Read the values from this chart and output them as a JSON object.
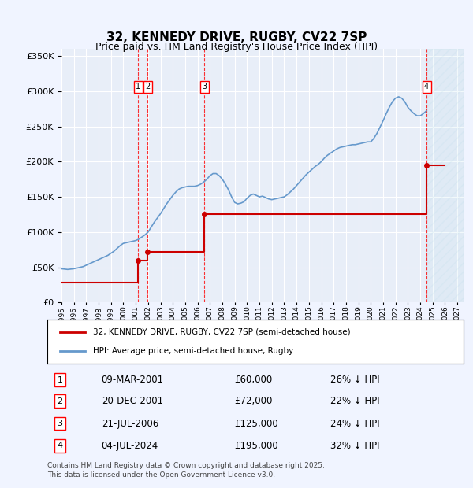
{
  "title": "32, KENNEDY DRIVE, RUGBY, CV22 7SP",
  "subtitle": "Price paid vs. HM Land Registry's House Price Index (HPI)",
  "ylabel_ticks": [
    "£0",
    "£50K",
    "£100K",
    "£150K",
    "£200K",
    "£250K",
    "£300K",
    "£350K"
  ],
  "ytick_values": [
    0,
    50000,
    100000,
    150000,
    200000,
    250000,
    300000,
    350000
  ],
  "ylim": [
    0,
    360000
  ],
  "xlim_start": 1995.0,
  "xlim_end": 2027.5,
  "background_color": "#f0f4ff",
  "plot_bg_color": "#e8eef8",
  "grid_color": "#ffffff",
  "red_line_color": "#cc0000",
  "blue_line_color": "#6699cc",
  "transactions": [
    {
      "id": 1,
      "date": "09-MAR-2001",
      "year": 2001.19,
      "price": 60000,
      "pct": "26%",
      "label": "1"
    },
    {
      "id": 2,
      "date": "20-DEC-2001",
      "year": 2001.97,
      "price": 72000,
      "pct": "22%",
      "label": "2"
    },
    {
      "id": 3,
      "date": "21-JUL-2006",
      "year": 2006.55,
      "price": 125000,
      "pct": "24%",
      "label": "3"
    },
    {
      "id": 4,
      "date": "04-JUL-2024",
      "year": 2024.51,
      "price": 195000,
      "pct": "32%",
      "label": "4"
    }
  ],
  "legend_line1": "32, KENNEDY DRIVE, RUGBY, CV22 7SP (semi-detached house)",
  "legend_line2": "HPI: Average price, semi-detached house, Rugby",
  "footer1": "Contains HM Land Registry data © Crown copyright and database right 2025.",
  "footer2": "This data is licensed under the Open Government Licence v3.0.",
  "hpi_data_x": [
    1995.0,
    1995.25,
    1995.5,
    1995.75,
    1996.0,
    1996.25,
    1996.5,
    1996.75,
    1997.0,
    1997.25,
    1997.5,
    1997.75,
    1998.0,
    1998.25,
    1998.5,
    1998.75,
    1999.0,
    1999.25,
    1999.5,
    1999.75,
    2000.0,
    2000.25,
    2000.5,
    2000.75,
    2001.0,
    2001.25,
    2001.5,
    2001.75,
    2002.0,
    2002.25,
    2002.5,
    2002.75,
    2003.0,
    2003.25,
    2003.5,
    2003.75,
    2004.0,
    2004.25,
    2004.5,
    2004.75,
    2005.0,
    2005.25,
    2005.5,
    2005.75,
    2006.0,
    2006.25,
    2006.5,
    2006.75,
    2007.0,
    2007.25,
    2007.5,
    2007.75,
    2008.0,
    2008.25,
    2008.5,
    2008.75,
    2009.0,
    2009.25,
    2009.5,
    2009.75,
    2010.0,
    2010.25,
    2010.5,
    2010.75,
    2011.0,
    2011.25,
    2011.5,
    2011.75,
    2012.0,
    2012.25,
    2012.5,
    2012.75,
    2013.0,
    2013.25,
    2013.5,
    2013.75,
    2014.0,
    2014.25,
    2014.5,
    2014.75,
    2015.0,
    2015.25,
    2015.5,
    2015.75,
    2016.0,
    2016.25,
    2016.5,
    2016.75,
    2017.0,
    2017.25,
    2017.5,
    2017.75,
    2018.0,
    2018.25,
    2018.5,
    2018.75,
    2019.0,
    2019.25,
    2019.5,
    2019.75,
    2020.0,
    2020.25,
    2020.5,
    2020.75,
    2021.0,
    2021.25,
    2021.5,
    2021.75,
    2022.0,
    2022.25,
    2022.5,
    2022.75,
    2023.0,
    2023.25,
    2023.5,
    2023.75,
    2024.0,
    2024.25,
    2024.5
  ],
  "hpi_data_y": [
    48000,
    47500,
    47000,
    47500,
    48000,
    49000,
    50000,
    51000,
    53000,
    55000,
    57000,
    59000,
    61000,
    63000,
    65000,
    67000,
    70000,
    73000,
    77000,
    81000,
    84000,
    85000,
    86000,
    87000,
    88000,
    90000,
    93000,
    96000,
    100000,
    107000,
    114000,
    120000,
    126000,
    133000,
    140000,
    146000,
    152000,
    157000,
    161000,
    163000,
    164000,
    165000,
    165000,
    165000,
    166000,
    168000,
    171000,
    175000,
    180000,
    183000,
    183000,
    180000,
    175000,
    168000,
    160000,
    150000,
    142000,
    140000,
    141000,
    143000,
    148000,
    152000,
    154000,
    152000,
    150000,
    151000,
    149000,
    147000,
    146000,
    147000,
    148000,
    149000,
    150000,
    153000,
    157000,
    161000,
    166000,
    171000,
    176000,
    181000,
    185000,
    189000,
    193000,
    196000,
    200000,
    205000,
    209000,
    212000,
    215000,
    218000,
    220000,
    221000,
    222000,
    223000,
    224000,
    224000,
    225000,
    226000,
    227000,
    228000,
    228000,
    233000,
    240000,
    249000,
    258000,
    268000,
    277000,
    285000,
    290000,
    292000,
    290000,
    285000,
    277000,
    272000,
    268000,
    265000,
    265000,
    268000,
    272000
  ],
  "price_data_x": [
    1995.0,
    2001.19,
    2001.19,
    2001.97,
    2001.97,
    2006.55,
    2006.55,
    2024.51,
    2024.51,
    2026.0
  ],
  "price_data_y": [
    28000,
    28000,
    60000,
    60000,
    72000,
    72000,
    125000,
    125000,
    195000,
    195000
  ]
}
